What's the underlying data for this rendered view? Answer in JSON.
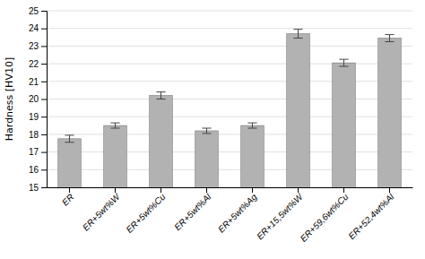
{
  "chart_data": {
    "type": "bar",
    "categories": [
      "ER",
      "ER+5wt%W",
      "ER+5wt%Cu",
      "ER+5wt%Al",
      "ER+5wt%Ag",
      "ER+15,5wt%W",
      "ER+59,6wt%Cu",
      "ER+52,4wt%Al"
    ],
    "values": [
      17.75,
      18.5,
      20.2,
      18.2,
      18.5,
      23.7,
      22.05,
      23.45
    ],
    "errors": [
      0.2,
      0.15,
      0.2,
      0.15,
      0.15,
      0.25,
      0.2,
      0.2
    ],
    "color": "#b2b2b2",
    "ylabel": "Hardness [HV10]",
    "ylim": [
      15,
      25
    ],
    "yticks": [
      15,
      16,
      17,
      18,
      19,
      20,
      21,
      22,
      23,
      24,
      25
    ],
    "grid": true
  }
}
